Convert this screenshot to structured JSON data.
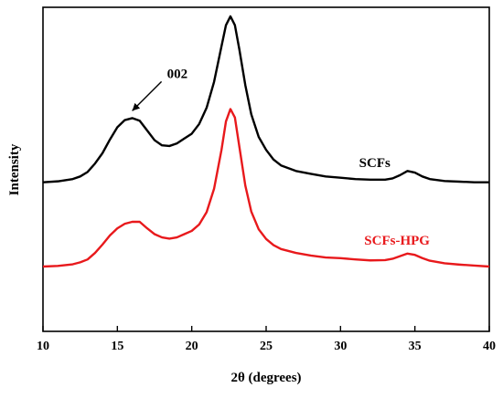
{
  "chart_data": {
    "type": "line",
    "xlabel": "2θ (degrees)",
    "ylabel": "Intensity",
    "xlim": [
      10,
      40
    ],
    "xticks": [
      10,
      15,
      20,
      25,
      30,
      35,
      40
    ],
    "y_units": "arbitrary (stacked traces, no y tick labels)",
    "ylim": [
      0,
      1
    ],
    "grid": false,
    "legend": "none (series labelled directly on plot)",
    "annotations": [
      {
        "text": "002",
        "points_to_x": 16.0,
        "series": "SCFs"
      }
    ],
    "series": [
      {
        "name": "SCFs",
        "color": "#000000",
        "label_anchor_x": 32.3,
        "points": [
          [
            10.0,
            0.46
          ],
          [
            11.0,
            0.463
          ],
          [
            12.0,
            0.47
          ],
          [
            12.5,
            0.478
          ],
          [
            13.0,
            0.492
          ],
          [
            13.5,
            0.518
          ],
          [
            14.0,
            0.55
          ],
          [
            14.5,
            0.592
          ],
          [
            15.0,
            0.63
          ],
          [
            15.5,
            0.652
          ],
          [
            16.0,
            0.658
          ],
          [
            16.5,
            0.65
          ],
          [
            17.0,
            0.62
          ],
          [
            17.5,
            0.59
          ],
          [
            18.0,
            0.574
          ],
          [
            18.5,
            0.572
          ],
          [
            19.0,
            0.58
          ],
          [
            19.5,
            0.595
          ],
          [
            20.0,
            0.61
          ],
          [
            20.5,
            0.64
          ],
          [
            21.0,
            0.69
          ],
          [
            21.5,
            0.77
          ],
          [
            22.0,
            0.88
          ],
          [
            22.3,
            0.945
          ],
          [
            22.6,
            0.972
          ],
          [
            22.9,
            0.945
          ],
          [
            23.2,
            0.87
          ],
          [
            23.6,
            0.76
          ],
          [
            24.0,
            0.67
          ],
          [
            24.5,
            0.6
          ],
          [
            25.0,
            0.56
          ],
          [
            25.5,
            0.53
          ],
          [
            26.0,
            0.512
          ],
          [
            27.0,
            0.495
          ],
          [
            28.0,
            0.486
          ],
          [
            29.0,
            0.478
          ],
          [
            30.0,
            0.474
          ],
          [
            31.0,
            0.47
          ],
          [
            32.0,
            0.468
          ],
          [
            33.0,
            0.468
          ],
          [
            33.5,
            0.472
          ],
          [
            34.0,
            0.482
          ],
          [
            34.5,
            0.495
          ],
          [
            35.0,
            0.49
          ],
          [
            35.5,
            0.478
          ],
          [
            36.0,
            0.47
          ],
          [
            37.0,
            0.464
          ],
          [
            38.0,
            0.462
          ],
          [
            39.0,
            0.46
          ],
          [
            40.0,
            0.46
          ]
        ]
      },
      {
        "name": "SCFs-HPG",
        "color": "#e8191c",
        "label_anchor_x": 33.8,
        "points": [
          [
            10.0,
            0.2
          ],
          [
            11.0,
            0.202
          ],
          [
            12.0,
            0.207
          ],
          [
            12.5,
            0.213
          ],
          [
            13.0,
            0.222
          ],
          [
            13.5,
            0.242
          ],
          [
            14.0,
            0.268
          ],
          [
            14.5,
            0.296
          ],
          [
            15.0,
            0.318
          ],
          [
            15.5,
            0.332
          ],
          [
            16.0,
            0.338
          ],
          [
            16.5,
            0.338
          ],
          [
            17.0,
            0.318
          ],
          [
            17.5,
            0.3
          ],
          [
            18.0,
            0.29
          ],
          [
            18.5,
            0.286
          ],
          [
            19.0,
            0.29
          ],
          [
            19.5,
            0.3
          ],
          [
            20.0,
            0.31
          ],
          [
            20.5,
            0.33
          ],
          [
            21.0,
            0.368
          ],
          [
            21.5,
            0.44
          ],
          [
            22.0,
            0.56
          ],
          [
            22.3,
            0.648
          ],
          [
            22.6,
            0.686
          ],
          [
            22.9,
            0.66
          ],
          [
            23.2,
            0.57
          ],
          [
            23.6,
            0.45
          ],
          [
            24.0,
            0.37
          ],
          [
            24.5,
            0.315
          ],
          [
            25.0,
            0.285
          ],
          [
            25.5,
            0.266
          ],
          [
            26.0,
            0.254
          ],
          [
            27.0,
            0.242
          ],
          [
            28.0,
            0.234
          ],
          [
            29.0,
            0.228
          ],
          [
            30.0,
            0.226
          ],
          [
            31.0,
            0.222
          ],
          [
            32.0,
            0.219
          ],
          [
            33.0,
            0.22
          ],
          [
            33.5,
            0.224
          ],
          [
            34.0,
            0.232
          ],
          [
            34.5,
            0.24
          ],
          [
            35.0,
            0.236
          ],
          [
            35.5,
            0.226
          ],
          [
            36.0,
            0.218
          ],
          [
            37.0,
            0.21
          ],
          [
            38.0,
            0.206
          ],
          [
            39.0,
            0.203
          ],
          [
            40.0,
            0.2
          ]
        ]
      }
    ]
  }
}
